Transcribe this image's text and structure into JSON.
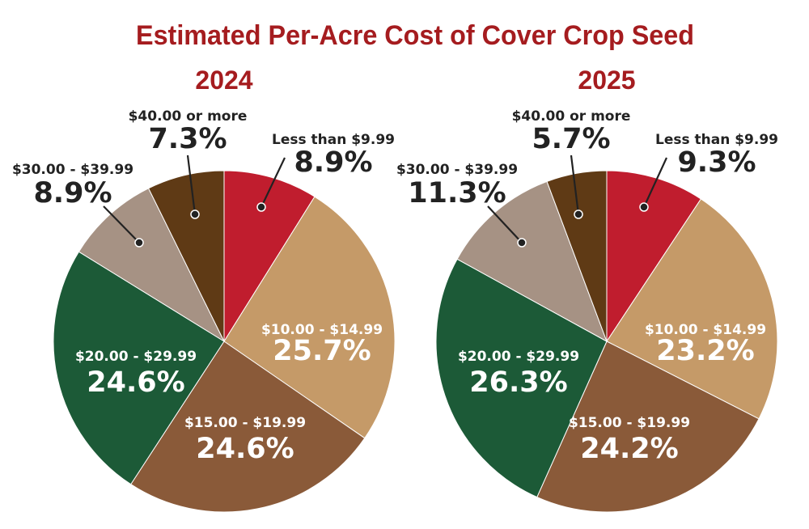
{
  "page_title": "Estimated Per-Acre Cost of Cover Crop Seed",
  "chart_data": [
    {
      "type": "pie",
      "title": "2024",
      "categories": [
        "Less than $9.99",
        "$10.00 - $14.99",
        "$15.00 - $19.99",
        "$20.00 - $29.99",
        "$30.00 - $39.99",
        "$40.00 or more"
      ],
      "values": [
        8.9,
        25.7,
        24.6,
        24.6,
        8.9,
        7.3
      ],
      "value_labels": [
        "8.9%",
        "25.7%",
        "24.6%",
        "24.6%",
        "8.9%",
        "7.3%"
      ],
      "colors": [
        "#c01d2e",
        "#c59a68",
        "#8a5a39",
        "#1c5a37",
        "#a69284",
        "#5f3a15"
      ],
      "label_colors": [
        "#222222",
        "#ffffff",
        "#ffffff",
        "#ffffff",
        "#222222",
        "#222222"
      ]
    },
    {
      "type": "pie",
      "title": "2025",
      "categories": [
        "Less than $9.99",
        "$10.00 - $14.99",
        "$15.00 - $19.99",
        "$20.00 - $29.99",
        "$30.00 - $39.99",
        "$40.00 or more"
      ],
      "values": [
        9.3,
        23.2,
        24.2,
        26.3,
        11.3,
        5.7
      ],
      "value_labels": [
        "9.3%",
        "23.2%",
        "24.2%",
        "26.3%",
        "11.3%",
        "5.7%"
      ],
      "colors": [
        "#c01d2e",
        "#c59a68",
        "#8a5a39",
        "#1c5a37",
        "#a69284",
        "#5f3a15"
      ],
      "label_colors": [
        "#222222",
        "#ffffff",
        "#ffffff",
        "#ffffff",
        "#222222",
        "#222222"
      ]
    }
  ]
}
